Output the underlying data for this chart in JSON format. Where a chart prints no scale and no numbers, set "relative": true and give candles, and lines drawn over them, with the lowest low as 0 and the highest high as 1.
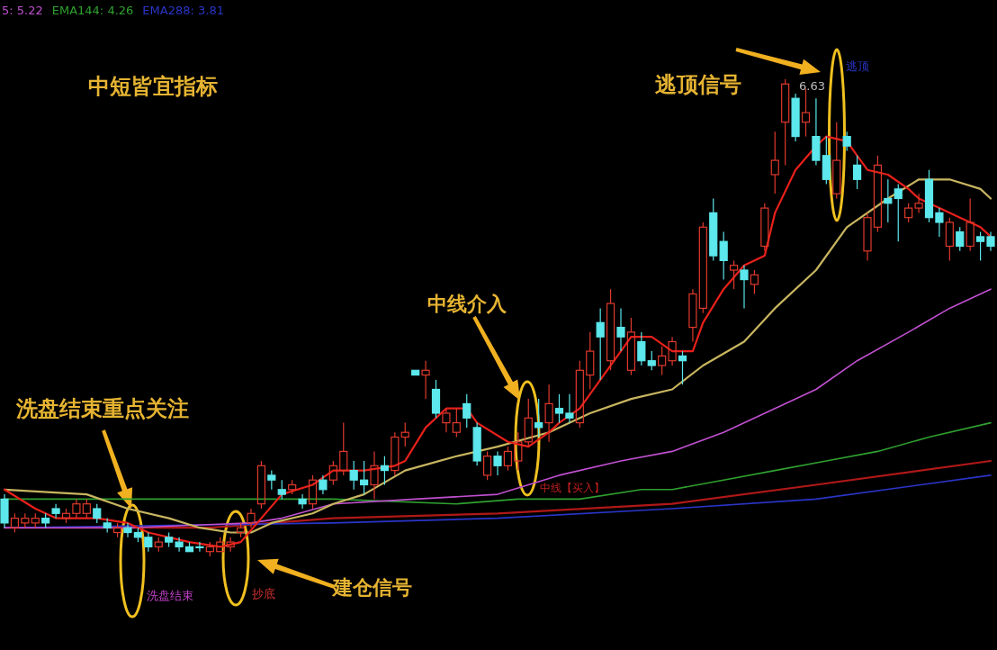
{
  "chart_data": {
    "type": "candlestick",
    "relative": true,
    "legend": "top left",
    "title": "中短皆宜指标",
    "annotations": [
      "洗盘结束重点关注",
      "中线介入",
      "逃顶信号",
      "建仓信号",
      "洗盘结束",
      "抄底",
      "中线【买入】",
      "逃顶",
      "6.63"
    ],
    "categories": [
      null,
      null,
      null,
      null,
      null,
      null,
      null,
      null,
      null,
      null,
      null,
      null,
      null,
      null,
      null,
      null,
      null,
      null,
      null,
      null,
      null,
      null,
      null,
      null,
      null,
      null,
      null,
      null,
      null,
      null,
      null,
      null,
      null,
      null,
      null,
      null,
      null,
      null,
      null,
      null,
      null,
      null,
      null,
      null,
      null,
      null,
      null,
      null,
      null,
      null,
      null,
      null,
      null,
      null,
      null,
      null,
      null,
      null,
      null,
      null,
      null,
      null,
      null,
      null,
      null,
      null,
      null,
      null,
      null,
      null,
      null,
      null,
      null,
      null,
      null,
      null,
      null,
      null,
      null,
      null,
      null,
      null,
      null,
      null,
      null,
      null,
      null,
      null,
      null,
      null,
      null,
      null,
      null,
      null,
      null,
      null,
      null
    ],
    "ohlc": [
      [
        0.12,
        0.13,
        0.06,
        0.07
      ],
      [
        0.06,
        0.09,
        0.05,
        0.08
      ],
      [
        0.07,
        0.09,
        0.06,
        0.08
      ],
      [
        0.07,
        0.09,
        0.06,
        0.08
      ],
      [
        0.08,
        0.09,
        0.06,
        0.07
      ],
      [
        0.1,
        0.11,
        0.08,
        0.09
      ],
      [
        0.08,
        0.1,
        0.07,
        0.09
      ],
      [
        0.09,
        0.12,
        0.08,
        0.11
      ],
      [
        0.09,
        0.12,
        0.08,
        0.11
      ],
      [
        0.1,
        0.11,
        0.07,
        0.08
      ],
      [
        0.07,
        0.08,
        0.05,
        0.06
      ],
      [
        0.05,
        0.07,
        0.04,
        0.06
      ],
      [
        0.06,
        0.07,
        0.04,
        0.05
      ],
      [
        0.05,
        0.06,
        0.03,
        0.04
      ],
      [
        0.04,
        0.05,
        0.01,
        0.02
      ],
      [
        0.02,
        0.04,
        0.01,
        0.03
      ],
      [
        0.04,
        0.05,
        0.02,
        0.03
      ],
      [
        0.03,
        0.04,
        0.01,
        0.02
      ],
      [
        0.02,
        0.03,
        0.01,
        0.01
      ],
      [
        0.02,
        0.03,
        0.01,
        0.02
      ],
      [
        0.01,
        0.03,
        0.0,
        0.02
      ],
      [
        0.01,
        0.04,
        0.01,
        0.03
      ],
      [
        0.02,
        0.04,
        0.01,
        0.03
      ],
      [
        0.05,
        0.07,
        0.04,
        0.06
      ],
      [
        0.07,
        0.1,
        0.06,
        0.09
      ],
      [
        0.11,
        0.2,
        0.1,
        0.19
      ],
      [
        0.17,
        0.18,
        0.14,
        0.16
      ],
      [
        0.14,
        0.16,
        0.12,
        0.13
      ],
      [
        0.14,
        0.16,
        0.13,
        0.15
      ],
      [
        0.12,
        0.13,
        0.1,
        0.11
      ],
      [
        0.11,
        0.17,
        0.1,
        0.16
      ],
      [
        0.16,
        0.17,
        0.13,
        0.14
      ],
      [
        0.16,
        0.2,
        0.15,
        0.19
      ],
      [
        0.18,
        0.28,
        0.17,
        0.22
      ],
      [
        0.18,
        0.2,
        0.14,
        0.16
      ],
      [
        0.16,
        0.2,
        0.13,
        0.15
      ],
      [
        0.15,
        0.22,
        0.12,
        0.19
      ],
      [
        0.19,
        0.21,
        0.15,
        0.18
      ],
      [
        0.18,
        0.26,
        0.17,
        0.25
      ],
      [
        0.25,
        0.28,
        0.23,
        0.26
      ],
      [
        0.39,
        0.39,
        0.38,
        0.38
      ],
      [
        0.38,
        0.41,
        0.33,
        0.39
      ],
      [
        0.35,
        0.37,
        0.29,
        0.3
      ],
      [
        0.28,
        0.31,
        0.26,
        0.3
      ],
      [
        0.26,
        0.31,
        0.25,
        0.28
      ],
      [
        0.32,
        0.34,
        0.27,
        0.29
      ],
      [
        0.27,
        0.28,
        0.19,
        0.2
      ],
      [
        0.17,
        0.22,
        0.16,
        0.21
      ],
      [
        0.21,
        0.22,
        0.17,
        0.19
      ],
      [
        0.19,
        0.23,
        0.18,
        0.22
      ],
      [
        0.2,
        0.26,
        0.18,
        0.24
      ],
      [
        0.24,
        0.33,
        0.23,
        0.29
      ],
      [
        0.28,
        0.33,
        0.25,
        0.27
      ],
      [
        0.28,
        0.36,
        0.24,
        0.32
      ],
      [
        0.31,
        0.34,
        0.28,
        0.3
      ],
      [
        0.3,
        0.34,
        0.28,
        0.29
      ],
      [
        0.28,
        0.41,
        0.27,
        0.39
      ],
      [
        0.38,
        0.47,
        0.35,
        0.43
      ],
      [
        0.49,
        0.52,
        0.37,
        0.46
      ],
      [
        0.41,
        0.56,
        0.39,
        0.53
      ],
      [
        0.48,
        0.52,
        0.43,
        0.46
      ],
      [
        0.39,
        0.5,
        0.38,
        0.47
      ],
      [
        0.45,
        0.47,
        0.4,
        0.41
      ],
      [
        0.41,
        0.43,
        0.39,
        0.4
      ],
      [
        0.4,
        0.44,
        0.38,
        0.42
      ],
      [
        0.41,
        0.46,
        0.4,
        0.45
      ],
      [
        0.42,
        0.43,
        0.36,
        0.41
      ],
      [
        0.48,
        0.56,
        0.45,
        0.55
      ],
      [
        0.52,
        0.7,
        0.51,
        0.69
      ],
      [
        0.72,
        0.75,
        0.62,
        0.63
      ],
      [
        0.66,
        0.68,
        0.58,
        0.62
      ],
      [
        0.6,
        0.62,
        0.56,
        0.61
      ],
      [
        0.6,
        0.61,
        0.52,
        0.58
      ],
      [
        0.57,
        0.6,
        0.55,
        0.59
      ],
      [
        0.65,
        0.74,
        0.64,
        0.73
      ],
      [
        0.8,
        0.89,
        0.76,
        0.83
      ],
      [
        0.91,
        1.0,
        0.82,
        0.99
      ],
      [
        0.96,
        0.97,
        0.87,
        0.88
      ],
      [
        0.91,
        0.98,
        0.88,
        0.93
      ],
      [
        0.88,
        0.96,
        0.82,
        0.83
      ],
      [
        0.84,
        0.88,
        0.78,
        0.79
      ],
      [
        0.76,
        0.91,
        0.75,
        0.83
      ],
      [
        0.88,
        0.89,
        0.85,
        0.86
      ],
      [
        0.82,
        0.84,
        0.77,
        0.79
      ],
      [
        0.64,
        0.72,
        0.62,
        0.71
      ],
      [
        0.69,
        0.84,
        0.68,
        0.82
      ],
      [
        0.75,
        0.79,
        0.7,
        0.74
      ],
      [
        0.77,
        0.78,
        0.66,
        0.75
      ],
      [
        0.71,
        0.74,
        0.7,
        0.73
      ],
      [
        0.73,
        0.76,
        0.72,
        0.74
      ],
      [
        0.79,
        0.81,
        0.7,
        0.71
      ],
      [
        0.72,
        0.73,
        0.67,
        0.7
      ],
      [
        0.65,
        0.71,
        0.62,
        0.7
      ],
      [
        0.68,
        0.69,
        0.64,
        0.65
      ],
      [
        0.65,
        0.75,
        0.64,
        0.7
      ],
      [
        0.67,
        0.68,
        0.62,
        0.66
      ],
      [
        0.67,
        0.68,
        0.64,
        0.65
      ]
    ],
    "series": [
      {
        "type": "line",
        "color": "#b01818",
        "values": [
          0.06,
          null,
          null,
          null,
          null,
          null,
          null,
          null,
          null,
          null,
          null,
          null,
          null,
          null,
          null,
          null,
          null,
          null,
          null,
          null,
          0.06,
          null,
          null,
          null,
          null,
          null,
          null,
          null,
          null,
          null,
          null,
          null,
          0.08,
          null,
          null,
          null,
          null,
          null,
          null,
          null,
          null,
          null,
          null,
          null,
          null,
          null,
          null,
          null,
          0.09,
          null,
          null,
          null,
          null,
          null,
          null,
          null,
          null,
          null,
          null,
          null,
          null,
          null,
          null,
          null,
          null,
          0.11,
          null,
          null,
          null,
          null,
          null,
          null,
          null,
          null,
          null,
          null,
          null,
          null,
          null,
          0.15,
          null,
          null,
          null,
          null,
          null,
          null,
          null,
          null,
          null,
          null,
          null,
          null,
          null,
          null,
          null,
          null,
          0.2
        ]
      },
      {
        "type": "line",
        "name": "EMA288: 3.81",
        "color": "#2a35c8",
        "values": [
          0.06,
          null,
          null,
          null,
          null,
          null,
          null,
          null,
          null,
          null,
          null,
          null,
          null,
          null,
          null,
          null,
          null,
          null,
          null,
          null,
          null,
          null,
          null,
          null,
          null,
          null,
          null,
          null,
          null,
          null,
          null,
          null,
          0.07,
          null,
          null,
          null,
          null,
          null,
          null,
          null,
          null,
          null,
          null,
          null,
          null,
          null,
          null,
          null,
          0.08,
          null,
          null,
          null,
          null,
          null,
          null,
          null,
          null,
          null,
          null,
          null,
          null,
          null,
          null,
          null,
          null,
          0.1,
          null,
          null,
          null,
          null,
          null,
          null,
          null,
          null,
          null,
          null,
          null,
          null,
          null,
          0.12,
          null,
          null,
          null,
          null,
          null,
          null,
          null,
          null,
          null,
          null,
          null,
          null,
          null,
          null,
          null,
          null,
          0.17
        ]
      },
      {
        "type": "line",
        "name": "EMA144: 4.26",
        "color": "#2fa02f",
        "values": [
          0.12,
          null,
          null,
          null,
          null,
          null,
          null,
          null,
          null,
          null,
          0.12,
          null,
          null,
          null,
          null,
          null,
          null,
          null,
          null,
          null,
          null,
          null,
          null,
          null,
          null,
          0.12,
          null,
          null,
          null,
          null,
          null,
          null,
          0.12,
          null,
          null,
          null,
          null,
          null,
          null,
          null,
          null,
          null,
          null,
          null,
          0.11,
          null,
          null,
          null,
          null,
          null,
          0.12,
          null,
          null,
          null,
          null,
          null,
          0.12,
          null,
          null,
          null,
          null,
          null,
          0.14,
          null,
          null,
          0.14,
          null,
          null,
          null,
          null,
          0.16,
          null,
          null,
          null,
          null,
          0.18,
          null,
          null,
          null,
          null,
          0.2,
          null,
          null,
          null,
          null,
          0.22,
          null,
          null,
          null,
          null,
          0.25,
          null,
          null,
          null,
          null,
          null,
          0.28
        ]
      },
      {
        "type": "line",
        "name": "5: 5.22",
        "color": "#c050d0",
        "values": [
          0.06,
          null,
          null,
          null,
          null,
          null,
          null,
          null,
          null,
          null,
          null,
          null,
          0.06,
          null,
          null,
          null,
          null,
          null,
          null,
          null,
          null,
          null,
          null,
          null,
          0.07,
          null,
          null,
          0.08,
          null,
          null,
          null,
          null,
          0.11,
          null,
          null,
          null,
          null,
          null,
          null,
          null,
          0.12,
          null,
          null,
          null,
          null,
          null,
          null,
          null,
          0.13,
          null,
          null,
          null,
          null,
          null,
          0.17,
          null,
          null,
          null,
          null,
          null,
          0.2,
          null,
          null,
          null,
          null,
          0.22,
          null,
          null,
          null,
          null,
          0.26,
          null,
          null,
          null,
          null,
          0.31,
          null,
          null,
          null,
          0.35,
          null,
          null,
          null,
          0.41,
          null,
          null,
          null,
          null,
          0.47,
          null,
          null,
          null,
          0.52,
          null,
          null,
          null,
          0.56
        ]
      },
      {
        "type": "line",
        "color": "#c8b560",
        "values": [
          0.14,
          null,
          null,
          null,
          null,
          null,
          null,
          null,
          0.13,
          null,
          null,
          null,
          0.1,
          null,
          null,
          null,
          0.08,
          null,
          null,
          0.06,
          null,
          null,
          0.05,
          null,
          0.05,
          null,
          0.07,
          null,
          null,
          null,
          0.09,
          null,
          0.11,
          null,
          null,
          0.13,
          null,
          null,
          null,
          0.18,
          null,
          null,
          null,
          null,
          0.21,
          null,
          null,
          null,
          0.23,
          null,
          null,
          null,
          null,
          0.26,
          null,
          null,
          null,
          0.3,
          null,
          null,
          null,
          0.33,
          null,
          null,
          null,
          0.35,
          null,
          null,
          0.4,
          null,
          null,
          null,
          0.45,
          null,
          null,
          0.52,
          null,
          null,
          null,
          0.6,
          null,
          null,
          0.69,
          null,
          null,
          null,
          0.75,
          null,
          null,
          0.79,
          null,
          null,
          0.79,
          null,
          null,
          0.77,
          0.75
        ]
      },
      {
        "type": "line",
        "color": "#e8201a",
        "values": [
          0.14,
          null,
          null,
          0.1,
          null,
          0.08,
          null,
          null,
          null,
          0.08,
          null,
          null,
          0.07,
          null,
          0.05,
          null,
          null,
          null,
          0.03,
          null,
          null,
          0.02,
          null,
          0.03,
          null,
          0.08,
          null,
          0.13,
          null,
          null,
          0.15,
          null,
          0.18,
          null,
          null,
          0.18,
          null,
          null,
          0.19,
          0.2,
          null,
          0.27,
          null,
          0.31,
          null,
          0.31,
          0.28,
          null,
          null,
          0.24,
          null,
          0.23,
          null,
          0.26,
          0.28,
          null,
          0.31,
          null,
          0.37,
          null,
          0.43,
          0.46,
          null,
          0.46,
          null,
          0.43,
          null,
          0.43,
          0.49,
          null,
          0.56,
          null,
          0.61,
          null,
          0.63,
          0.72,
          null,
          0.81,
          null,
          0.86,
          0.88,
          null,
          0.87,
          0.84,
          0.81,
          null,
          0.8,
          null,
          0.77,
          0.75,
          null,
          0.73,
          null,
          0.71,
          null,
          0.69,
          0.67
        ]
      }
    ]
  }
}
